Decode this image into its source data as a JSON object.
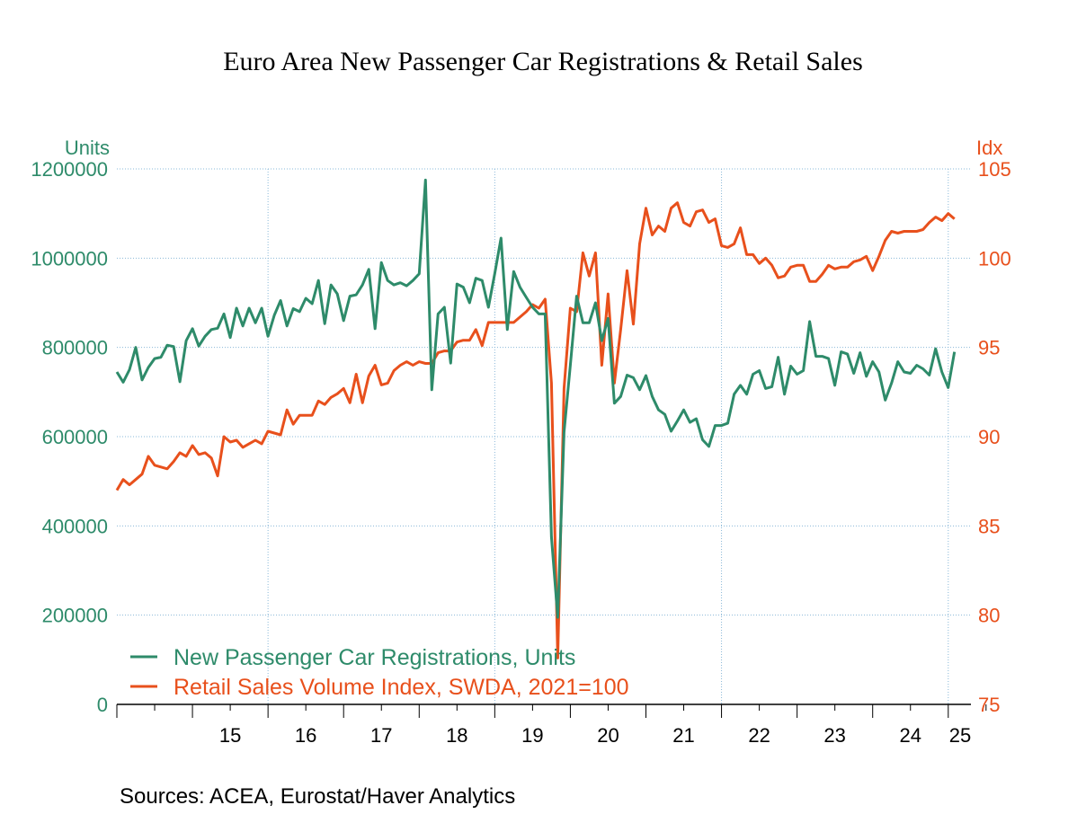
{
  "chart_data": {
    "type": "line",
    "title": "Euro Area New Passenger Car Registrations & Retail Sales",
    "left_axis": {
      "label": "Units",
      "range": [
        0,
        1200000
      ],
      "ticks": [
        "0",
        "200000",
        "400000",
        "600000",
        "800000",
        "1000000",
        "1200000"
      ],
      "tick_values": [
        0,
        200000,
        400000,
        600000,
        800000,
        1000000,
        1200000
      ]
    },
    "right_axis": {
      "label": "Idx",
      "range": [
        75,
        105
      ],
      "ticks": [
        "75",
        "80",
        "85",
        "90",
        "95",
        "100",
        "105"
      ],
      "tick_values": [
        75,
        80,
        85,
        90,
        95,
        100,
        105
      ]
    },
    "x_axis": {
      "start": 2014.0,
      "end": 2025.3,
      "year_labels": [
        {
          "label": "15",
          "year": 2015
        },
        {
          "label": "16",
          "year": 2016
        },
        {
          "label": "17",
          "year": 2017
        },
        {
          "label": "18",
          "year": 2018
        },
        {
          "label": "19",
          "year": 2019
        },
        {
          "label": "20",
          "year": 2020
        },
        {
          "label": "21",
          "year": 2021
        },
        {
          "label": "22",
          "year": 2022
        },
        {
          "label": "23",
          "year": 2023
        },
        {
          "label": "24",
          "year": 2024
        },
        {
          "label": "25",
          "year": 2025
        }
      ],
      "gridline_years": [
        2016,
        2019,
        2022,
        2025
      ]
    },
    "series_start": 2014.0,
    "months_step": 0.08333,
    "series": [
      {
        "name": "New Passenger Car Registrations, Units",
        "axis": "left",
        "color": "#2e8b6a",
        "values": [
          745000,
          722000,
          750000,
          800000,
          727000,
          755000,
          775000,
          778000,
          805000,
          802000,
          723000,
          815000,
          842000,
          803000,
          825000,
          840000,
          843000,
          875000,
          822000,
          888000,
          848000,
          888000,
          855000,
          888000,
          825000,
          872000,
          905000,
          848000,
          887000,
          880000,
          910000,
          898000,
          950000,
          853000,
          940000,
          920000,
          860000,
          915000,
          918000,
          940000,
          975000,
          842000,
          990000,
          950000,
          940000,
          945000,
          938000,
          950000,
          965000,
          1175000,
          705000,
          875000,
          890000,
          765000,
          942000,
          935000,
          900000,
          955000,
          950000,
          890000,
          965000,
          1045000,
          840000,
          970000,
          935000,
          912000,
          890000,
          875000,
          875000,
          375000,
          195000,
          610000,
          760000,
          915000,
          855000,
          855000,
          900000,
          815000,
          865000,
          675000,
          690000,
          738000,
          732000,
          705000,
          737000,
          690000,
          660000,
          650000,
          612000,
          635000,
          660000,
          632000,
          640000,
          593000,
          578000,
          625000,
          625000,
          630000,
          695000,
          715000,
          695000,
          740000,
          748000,
          708000,
          712000,
          778000,
          695000,
          758000,
          740000,
          748000,
          858000,
          780000,
          780000,
          775000,
          715000,
          790000,
          785000,
          742000,
          788000,
          735000,
          768000,
          745000,
          682000,
          720000,
          768000,
          745000,
          742000,
          760000,
          752000,
          738000,
          797000,
          745000,
          710000,
          790000
        ]
      },
      {
        "name": "Retail Sales Volume Index, SWDA, 2021=100",
        "axis": "right",
        "color": "#e8501c",
        "values": [
          87.0,
          87.6,
          87.3,
          87.6,
          87.9,
          88.9,
          88.4,
          88.3,
          88.2,
          88.6,
          89.1,
          88.9,
          89.5,
          89.0,
          89.1,
          88.8,
          87.8,
          90.0,
          89.7,
          89.8,
          89.4,
          89.6,
          89.8,
          89.6,
          90.3,
          90.2,
          90.1,
          91.5,
          90.7,
          91.2,
          91.2,
          91.2,
          92.0,
          91.8,
          92.2,
          92.4,
          92.7,
          91.9,
          93.5,
          91.9,
          93.4,
          94.0,
          92.9,
          93.0,
          93.7,
          94.0,
          94.2,
          94.0,
          94.2,
          94.1,
          94.1,
          94.7,
          94.8,
          94.8,
          95.3,
          95.4,
          95.4,
          96.0,
          95.1,
          96.4,
          96.4,
          96.4,
          96.4,
          96.4,
          96.7,
          97.0,
          97.4,
          97.2,
          97.7,
          93.0,
          77.6,
          92.7,
          97.2,
          97.0,
          100.3,
          99.0,
          100.3,
          94.0,
          98.0,
          93.0,
          96.0,
          99.3,
          96.3,
          100.8,
          102.8,
          101.3,
          101.8,
          101.5,
          102.8,
          103.1,
          102.0,
          101.8,
          102.6,
          102.7,
          102.0,
          102.2,
          100.7,
          100.6,
          100.8,
          101.7,
          100.2,
          100.2,
          99.7,
          100.0,
          99.6,
          98.9,
          99.0,
          99.5,
          99.6,
          99.6,
          98.7,
          98.7,
          99.1,
          99.6,
          99.4,
          99.5,
          99.5,
          99.8,
          99.9,
          100.1,
          99.3,
          100.1,
          101.0,
          101.5,
          101.4,
          101.5,
          101.5,
          101.5,
          101.6,
          102.0,
          102.3,
          102.1,
          102.5,
          102.2
        ]
      }
    ],
    "legend": "bottom-left",
    "source": "Sources:   ACEA, Eurostat/Haver Analytics"
  }
}
